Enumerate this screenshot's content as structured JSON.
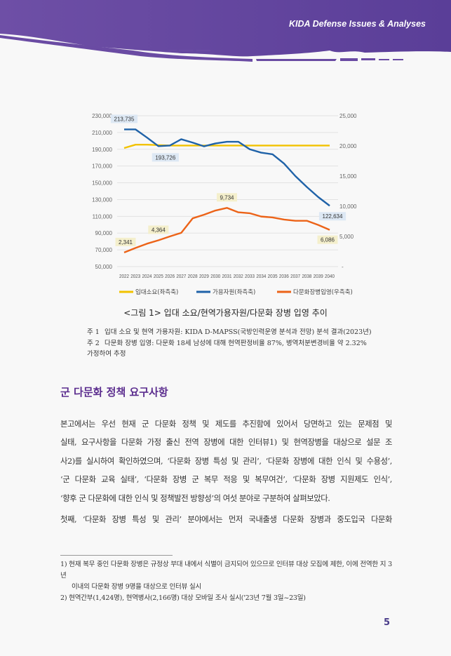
{
  "header": {
    "title": "KIDA Defense Issues & Analyses",
    "color": "#6a4ba3"
  },
  "chart_data": {
    "type": "line",
    "categories": [
      "2022",
      "2023",
      "2024",
      "2025",
      "2026",
      "2027",
      "2028",
      "2029",
      "2030",
      "2031",
      "2032",
      "2033",
      "2034",
      "2035",
      "2036",
      "2037",
      "2038",
      "2039",
      "2040"
    ],
    "y_left": {
      "range": [
        50000,
        230000
      ],
      "ticks": [
        "50,000",
        "70,000",
        "90,000",
        "110,000",
        "130,000",
        "150,000",
        "170,000",
        "190,000",
        "210,000",
        "230,000"
      ]
    },
    "y_right": {
      "range": [
        0,
        25000
      ],
      "ticks": [
        "-",
        "5,000",
        "10,000",
        "15,000",
        "20,000",
        "25,000"
      ]
    },
    "grid": true,
    "legend_placement": "bottom",
    "series": [
      {
        "name": "입대소요(좌측축)",
        "axis": "left",
        "color": "#f2c200",
        "values": [
          191500,
          195500,
          195500,
          195000,
          194500,
          194500,
          194500,
          194500,
          194500,
          194500,
          194500,
          194500,
          194500,
          194500,
          194500,
          194500,
          194500,
          194500,
          194500
        ]
      },
      {
        "name": "가용자원(좌측축)",
        "axis": "left",
        "color": "#1f62a8",
        "values": [
          213735,
          213700,
          204000,
          193726,
          194500,
          202000,
          198000,
          193500,
          197000,
          199000,
          199000,
          190000,
          186000,
          184000,
          173000,
          158000,
          145000,
          133000,
          122634
        ],
        "labels": [
          {
            "index": 0,
            "text": "213,735"
          },
          {
            "index": 3,
            "text": "193,726"
          },
          {
            "index": 18,
            "text": "122,634"
          }
        ]
      },
      {
        "name": "다문화장병입영(우측축)",
        "axis": "right",
        "color": "#ec6318",
        "values": [
          2341,
          3100,
          3800,
          4364,
          5000,
          5600,
          8000,
          8600,
          9300,
          9734,
          9000,
          8850,
          8300,
          8150,
          7800,
          7600,
          7600,
          6900,
          6086
        ],
        "labels": [
          {
            "index": 0,
            "text": "2,341"
          },
          {
            "index": 3,
            "text": "4,364"
          },
          {
            "index": 9,
            "text": "9,734"
          },
          {
            "index": 18,
            "text": "6,086"
          }
        ]
      }
    ]
  },
  "figure": {
    "caption": "<그림 1> 입대 소요/현역가용자원/다문화 장병 입영 추이",
    "notes": [
      {
        "label": "주 1",
        "text": "입대 소요 및 현역 가용자원: KIDA D-MAPSS(국방인력운영 분석과 전망) 분석 결과(2023년)"
      },
      {
        "label": "주 2",
        "text": "다문화 장병 입영: 다문화 18세 남성에 대해 현역판정비율 87%, 병역처분변경비율 약 2.32%",
        "text2": "가정하여 추정"
      }
    ]
  },
  "section": {
    "heading": "군 다문화 정책 요구사항",
    "para1": [
      "　본고에서는 우선 현재 군 다문화 정책 및 제도를 추진함에 있어서 당면하고 있는 문제점 및",
      "실태, 요구사항을 다문화 가정 출신 전역 장병에 대한 인터뷰1) 및 현역장병을 대상으로 설문 조",
      "사2)를 실시하여 확인하였으며, ‘다문화 장병 특성 및 관리’, ‘다문화 장병에 대한 인식 및 수용성’,",
      "‘군 다문화 교육 실태’, ‘다문화 장병 군 복무 적응 및 복무여건’, ‘다문화 장병 지원제도 인식’,",
      "‘향후 군 다문화에 대한 인식 및 정책발전 방향성’의 여섯 분야로 구분하여 살펴보았다."
    ],
    "para2": "　첫째, ‘다문화 장병 특성 및 관리’ 분야에서는 먼저 국내출생 다문화 장병과 중도입국 다문화"
  },
  "footnotes": [
    {
      "line1": "1) 현재 복무 중인 다문화 장병은 규정상 부대 내에서 식별이 금지되어 있으므로 인터뷰 대상 모집에 제한, 이에 전역한 지 3년",
      "line2": "    이내의 다문화 장병 9명을 대상으로 인터뷰 실시"
    },
    {
      "line1": "2) 현역간부(1,424명), 현역병사(2,166명) 대상 모바일 조사 실시('23년 7월 3일~23일)"
    }
  ],
  "page_number": "5"
}
